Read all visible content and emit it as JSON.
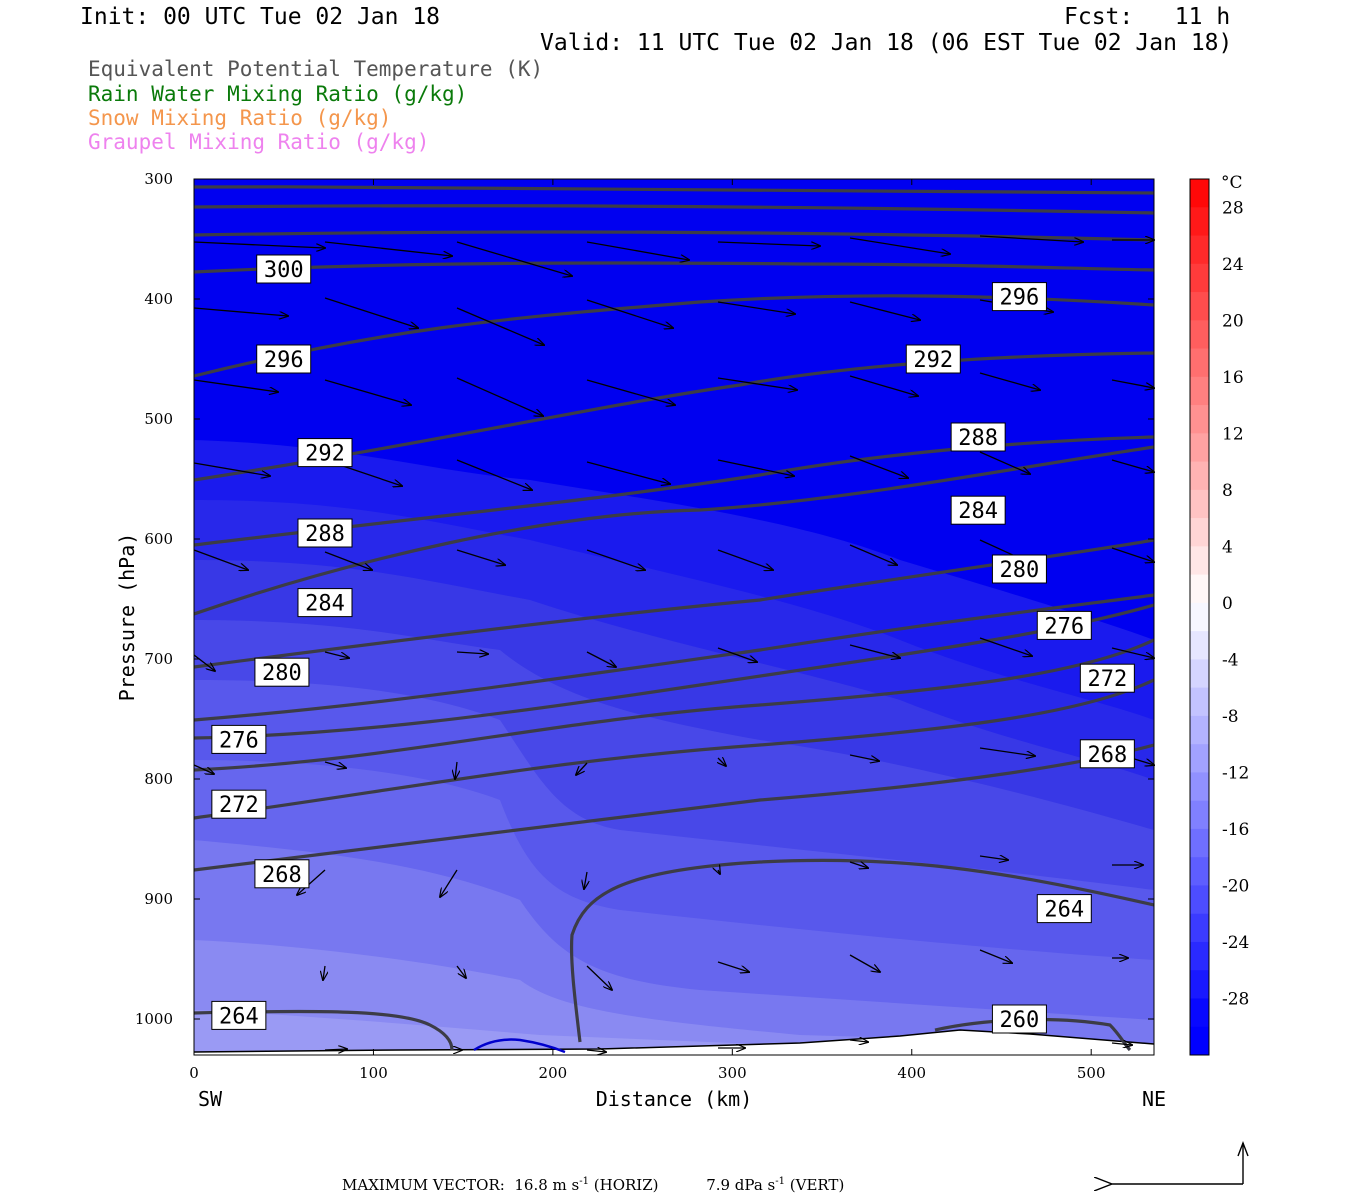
{
  "header": {
    "init": "Init: 00 UTC Tue 02 Jan 18",
    "fcst": "Fcst:   11 h",
    "valid": "Valid: 11 UTC Tue 02 Jan 18 (06 EST Tue 02 Jan 18)"
  },
  "legend": {
    "theta_e": "Equivalent Potential Temperature (K)",
    "rain": "Rain Water Mixing Ratio (g/kg)",
    "snow": "Snow Mixing Ratio (g/kg)",
    "graupel": "Graupel Mixing Ratio (g/kg)"
  },
  "colors": {
    "theta_e": "#555555",
    "rain": "#0a7a0a",
    "snow": "#f4964c",
    "graupel": "#ee82ee",
    "contour": "#3c3c46",
    "fill_coldest": "#0000f0"
  },
  "footer": {
    "label": "MAXIMUM VECTOR:",
    "horiz_value": "16.8 m s",
    "horiz_exp": "-1",
    "horiz_tag": " (HORIZ)",
    "vert_value": "7.9 dPa s",
    "vert_exp": "-1",
    "vert_tag": " (VERT)"
  },
  "chart_data": {
    "type": "cross-section contour",
    "xlabel": "Distance (km)",
    "ylabel": "Pressure (hPa)",
    "x_left_label": "SW",
    "x_right_label": "NE",
    "xlim": [
      0,
      535
    ],
    "ylim": [
      1030,
      300
    ],
    "x_ticks": [
      "0",
      "100",
      "200",
      "300",
      "400",
      "500"
    ],
    "y_ticks": [
      "300",
      "400",
      "500",
      "600",
      "700",
      "800",
      "900",
      "1000"
    ],
    "colorbar": {
      "unit": "°C",
      "labels": [
        "28",
        "24",
        "20",
        "16",
        "12",
        "8",
        "4",
        "0",
        "-4",
        "-8",
        "-12",
        "-16",
        "-20",
        "-24",
        "-28"
      ],
      "levels": [
        30,
        28,
        26,
        24,
        22,
        20,
        18,
        16,
        14,
        12,
        10,
        8,
        6,
        4,
        2,
        0,
        -2,
        -4,
        -6,
        -8,
        -10,
        -12,
        -14,
        -16,
        -18,
        -20,
        -22,
        -24,
        -26,
        -28,
        -30,
        -32
      ]
    },
    "contour_labels": [
      {
        "text": "300",
        "x": 50,
        "p": 375
      },
      {
        "text": "296",
        "x": 50,
        "p": 450
      },
      {
        "text": "296",
        "x": 460,
        "p": 398
      },
      {
        "text": "292",
        "x": 73,
        "p": 528
      },
      {
        "text": "292",
        "x": 412,
        "p": 450
      },
      {
        "text": "288",
        "x": 73,
        "p": 595
      },
      {
        "text": "288",
        "x": 437,
        "p": 515
      },
      {
        "text": "284",
        "x": 73,
        "p": 653
      },
      {
        "text": "284",
        "x": 437,
        "p": 576
      },
      {
        "text": "280",
        "x": 49,
        "p": 711
      },
      {
        "text": "280",
        "x": 460,
        "p": 625
      },
      {
        "text": "276",
        "x": 25,
        "p": 767
      },
      {
        "text": "276",
        "x": 485,
        "p": 672
      },
      {
        "text": "272",
        "x": 25,
        "p": 821
      },
      {
        "text": "272",
        "x": 509,
        "p": 716
      },
      {
        "text": "268",
        "x": 49,
        "p": 879
      },
      {
        "text": "268",
        "x": 509,
        "p": 779
      },
      {
        "text": "264",
        "x": 485,
        "p": 908
      },
      {
        "text": "264",
        "x": 25,
        "p": 997
      },
      {
        "text": "260",
        "x": 460,
        "p": 1000
      }
    ]
  }
}
